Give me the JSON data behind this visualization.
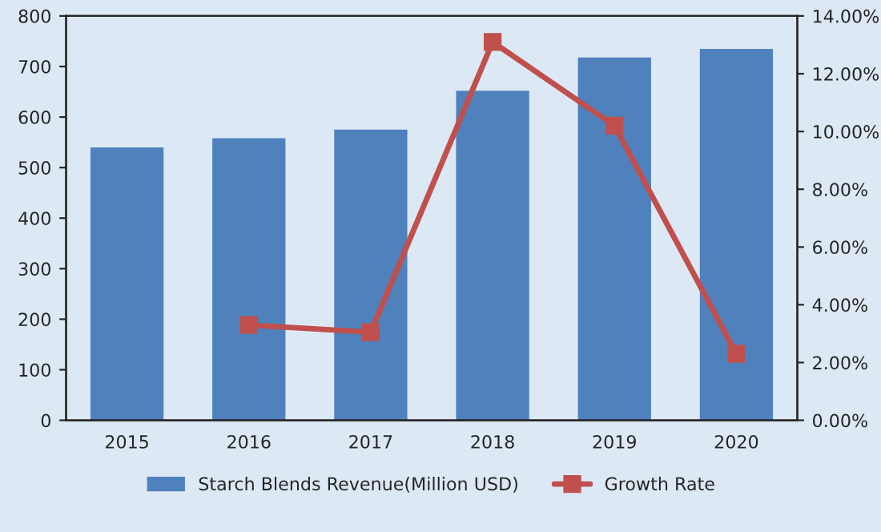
{
  "chart_data": {
    "type": "bar",
    "categories": [
      "2015",
      "2016",
      "2017",
      "2018",
      "2019",
      "2020"
    ],
    "series": [
      {
        "name": "Starch Blends Revenue(Million USD)",
        "color": "#4f81bd",
        "values": [
          540,
          558,
          575,
          652,
          718,
          735
        ]
      },
      {
        "name": "Growth Rate",
        "type": "line",
        "axis": "y2",
        "color": "#c0504d",
        "marker": "square",
        "values": [
          null,
          3.3,
          3.05,
          13.1,
          10.2,
          2.3
        ]
      }
    ],
    "ylim": [
      0,
      800
    ],
    "yticks": [
      0,
      100,
      200,
      300,
      400,
      500,
      600,
      700,
      800
    ],
    "y2lim": [
      0,
      14
    ],
    "y2ticks": [
      {
        "value": 0,
        "label": "0.00%"
      },
      {
        "value": 2,
        "label": "2.00%"
      },
      {
        "value": 4,
        "label": "4.00%"
      },
      {
        "value": 6,
        "label": "6.00%"
      },
      {
        "value": 8,
        "label": "8.00%"
      },
      {
        "value": 10,
        "label": "10.00%"
      },
      {
        "value": 12,
        "label": "12.00%"
      },
      {
        "value": 14,
        "label": "14.00%"
      }
    ],
    "legend": "bottom",
    "grid": false
  }
}
